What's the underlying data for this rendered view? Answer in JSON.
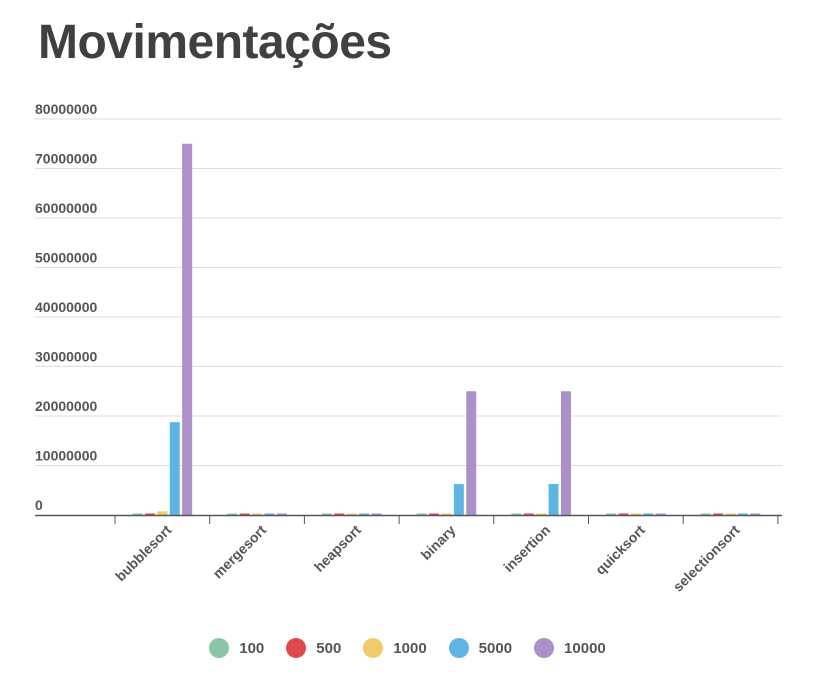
{
  "title": "Movimentações",
  "chart_data": {
    "type": "bar",
    "title": "Movimentações",
    "xlabel": "",
    "ylabel": "",
    "categories": [
      "bubblesort",
      "mergesort",
      "heapsort",
      "binary",
      "insertion",
      "quicksort",
      "selectionsort"
    ],
    "ylim": [
      0,
      80000000
    ],
    "yticks": [
      0,
      10000000,
      20000000,
      30000000,
      40000000,
      50000000,
      60000000,
      70000000,
      80000000
    ],
    "grid": true,
    "legend_position": "bottom",
    "series": [
      {
        "name": "100",
        "color": "#8bc5a5",
        "values": [
          7500,
          700,
          1500,
          2500,
          2500,
          800,
          300
        ]
      },
      {
        "name": "500",
        "color": "#e04a4f",
        "values": [
          190000,
          4500,
          10000,
          60000,
          60000,
          5000,
          1500
        ]
      },
      {
        "name": "1000",
        "color": "#f0cb69",
        "values": [
          750000,
          10000,
          22000,
          250000,
          250000,
          11000,
          3000
        ]
      },
      {
        "name": "5000",
        "color": "#5db5e4",
        "values": [
          18750000,
          62000,
          130000,
          6250000,
          6250000,
          65000,
          15000
        ]
      },
      {
        "name": "10000",
        "color": "#ab90c9",
        "values": [
          75000000,
          135000,
          270000,
          25000000,
          25000000,
          140000,
          30000
        ]
      }
    ]
  }
}
